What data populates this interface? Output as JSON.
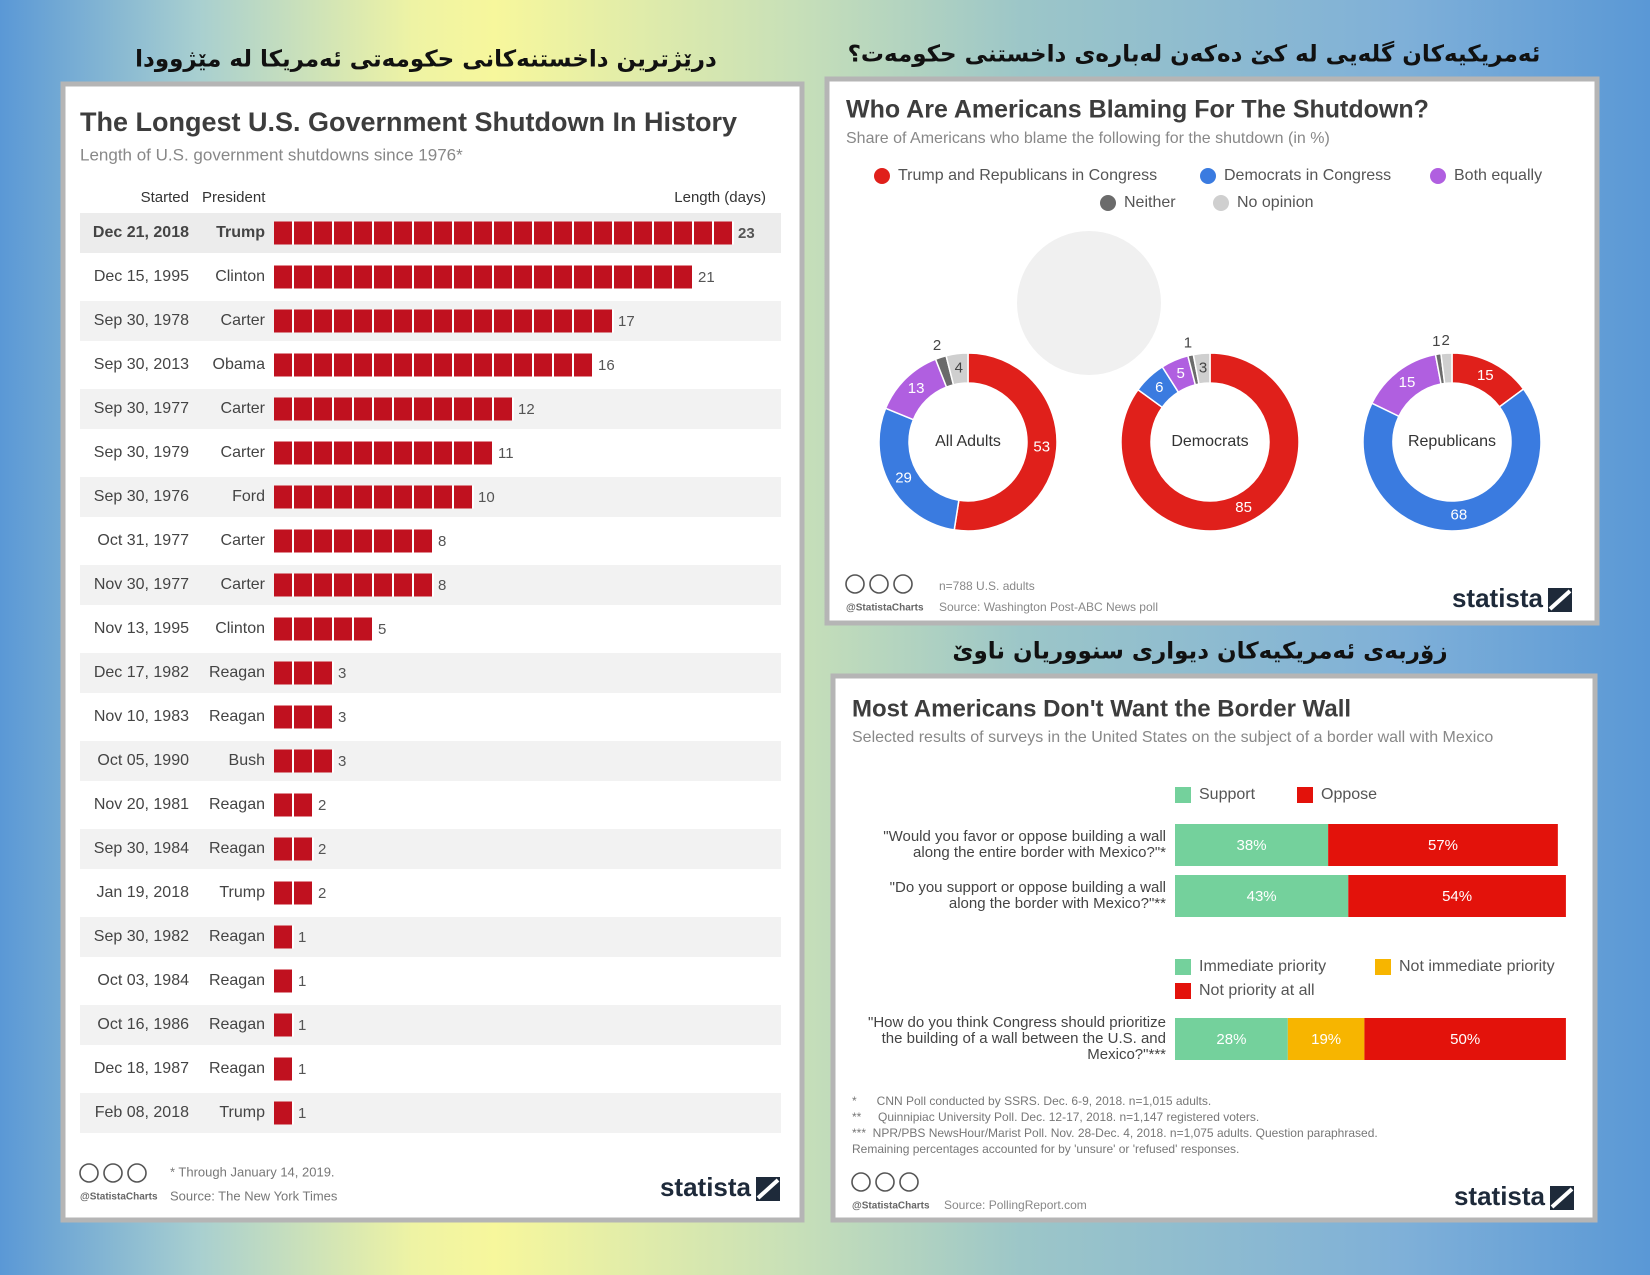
{
  "panel_titles": [
    "درێژترین داخستنەکانی حکومەتی ئەمریکا لە مێژوودا",
    "ئەمریکیەکان گلەیی لە کێ دەکەن لەبارەی داخستنی حکومەت؟",
    "زۆربەی ئەمریکیەکان دیواری سنووریان ناوێ"
  ],
  "chart_data": [
    {
      "type": "bar",
      "title": "The Longest U.S. Government Shutdown In History",
      "subtitle": "Length of U.S. government shutdowns since 1976*",
      "column_headers": [
        "Started",
        "President",
        "Length (days)"
      ],
      "categories": [
        "Dec 21, 2018",
        "Dec 15, 1995",
        "Sep 30, 1978",
        "Sep 30, 2013",
        "Sep 30, 1977",
        "Sep 30, 1979",
        "Sep 30, 1976",
        "Oct 31, 1977",
        "Nov 30, 1977",
        "Nov 13, 1995",
        "Dec 17, 1982",
        "Nov 10, 1983",
        "Oct 05, 1990",
        "Nov 20, 1981",
        "Sep 30, 1984",
        "Jan 19, 2018",
        "Sep 30, 1982",
        "Oct 03, 1984",
        "Oct 16, 1986",
        "Dec 18, 1987",
        "Feb 08, 2018"
      ],
      "presidents": [
        "Trump",
        "Clinton",
        "Carter",
        "Obama",
        "Carter",
        "Carter",
        "Ford",
        "Carter",
        "Carter",
        "Clinton",
        "Reagan",
        "Reagan",
        "Bush",
        "Reagan",
        "Reagan",
        "Trump",
        "Reagan",
        "Reagan",
        "Reagan",
        "Reagan",
        "Trump"
      ],
      "values": [
        23,
        21,
        17,
        16,
        12,
        11,
        10,
        8,
        8,
        5,
        3,
        3,
        3,
        2,
        2,
        2,
        1,
        1,
        1,
        1,
        1
      ],
      "color": "#c0111f",
      "footnote": "* Through January 14, 2019.",
      "source": "Source: The New York Times",
      "credit": "@StatistaCharts",
      "brand": "statista"
    },
    {
      "type": "donut",
      "title": "Who Are Americans Blaming For The Shutdown?",
      "subtitle": "Share of Americans who blame the following for the shutdown (in %)",
      "categories": [
        "Trump and Republicans in Congress",
        "Democrats in Congress",
        "Both equally",
        "Neither",
        "No opinion"
      ],
      "colors": [
        "#e0201b",
        "#3a7be0",
        "#b05fe0",
        "#6b6b6b",
        "#cfcfcf"
      ],
      "series": [
        {
          "name": "All Adults",
          "values": [
            53,
            29,
            13,
            2,
            4
          ]
        },
        {
          "name": "Democrats",
          "values": [
            85,
            6,
            5,
            1,
            3
          ]
        },
        {
          "name": "Republicans",
          "values": [
            15,
            68,
            15,
            1,
            2
          ]
        }
      ],
      "note": "n=788 U.S. adults",
      "source": "Source: Washington Post-ABC News poll",
      "credit": "@StatistaCharts",
      "brand": "statista"
    },
    {
      "type": "stacked_bar",
      "title": "Most Americans Don't Want the Border Wall",
      "subtitle": "Selected results of surveys in the United States on the subject of a border wall with Mexico",
      "xlim": [
        0,
        100
      ],
      "groups": [
        {
          "categories": [
            "\"Would you favor or oppose building a wall along the entire border with Mexico?\"*",
            "\"Do you support or oppose building a wall along the border with Mexico?\"**"
          ],
          "series": [
            {
              "name": "Support",
              "color": "#74d19c",
              "values": [
                38,
                43
              ],
              "value_labels": [
                "38%",
                "43%"
              ]
            },
            {
              "name": "Oppose",
              "color": "#e3120b",
              "values": [
                57,
                54
              ],
              "value_labels": [
                "57%",
                "54%"
              ]
            }
          ]
        },
        {
          "categories": [
            "\"How do you think Congress should prioritize the building of a wall between the U.S. and Mexico?\"***"
          ],
          "series": [
            {
              "name": "Immediate priority",
              "color": "#74d19c",
              "values": [
                28
              ],
              "value_labels": [
                "28%"
              ]
            },
            {
              "name": "Not immediate priority",
              "color": "#f7b500",
              "values": [
                19
              ],
              "value_labels": [
                "19%"
              ]
            },
            {
              "name": "Not priority at all",
              "color": "#e3120b",
              "values": [
                50
              ],
              "value_labels": [
                "50%"
              ]
            }
          ]
        }
      ],
      "notes": [
        "*      CNN Poll conducted by SSRS. Dec. 6-9, 2018. n=1,015 adults.",
        "**     Quinnipiac University Poll. Dec. 12-17, 2018. n=1,147 registered voters.",
        "***  NPR/PBS NewsHour/Marist Poll. Nov. 28-Dec. 4, 2018. n=1,075 adults. Question paraphrased.",
        "Remaining percentages accounted for by 'unsure' or 'refused' responses."
      ],
      "source": "Source: PollingReport.com",
      "credit": "@StatistaCharts",
      "brand": "statista"
    }
  ]
}
